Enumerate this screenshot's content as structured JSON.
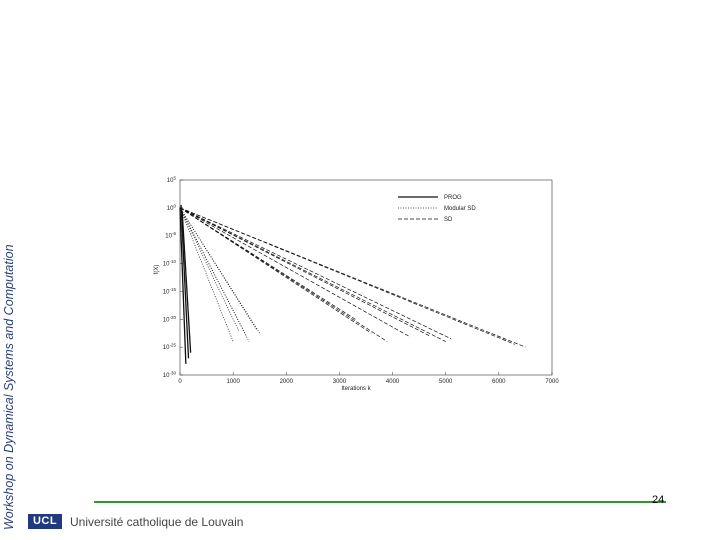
{
  "slide": {
    "side_title": "Workshop on Dynamical Systems and Computation",
    "page_number": "24",
    "logo_text": "UCL",
    "university_name": "Université catholique de Louvain",
    "accent_color": "#2e9a2e",
    "title_color": "#2a3f7a",
    "logo_color": "#1f3a80"
  },
  "chart_data": {
    "type": "line",
    "title": "",
    "xlabel": "Iterations k",
    "ylabel": "f(X)",
    "xlim": [
      0,
      7000
    ],
    "ylim_exponent": [
      -30,
      5
    ],
    "yscale": "log",
    "x_ticks": [
      0,
      1000,
      2000,
      3000,
      4000,
      5000,
      6000,
      7000
    ],
    "y_ticks": [
      "10^5",
      "10^0",
      "10^-5",
      "10^-10",
      "10^-15",
      "10^-20",
      "10^-25",
      "10^-30"
    ],
    "grid": false,
    "legend_position": "top-right",
    "series": [
      {
        "name": "PROG",
        "style": "solid",
        "curves": [
          [
            [
              0,
              0
            ],
            [
              110,
              -28
            ]
          ],
          [
            [
              20,
              0.5
            ],
            [
              160,
              -27
            ]
          ],
          [
            [
              40,
              -0.5
            ],
            [
              200,
              -26
            ]
          ]
        ]
      },
      {
        "name": "Modular SD",
        "style": "dotted",
        "curves": [
          [
            [
              0,
              0
            ],
            [
              1000,
              -24
            ]
          ],
          [
            [
              0,
              0
            ],
            [
              1100,
              -22
            ]
          ],
          [
            [
              0,
              0
            ],
            [
              1250,
              -23
            ]
          ],
          [
            [
              0,
              0
            ],
            [
              1300,
              -24
            ]
          ],
          [
            [
              0,
              0
            ],
            [
              1450,
              -22
            ]
          ],
          [
            [
              0,
              0
            ],
            [
              1500,
              -22.5
            ]
          ]
        ]
      },
      {
        "name": "SD",
        "style": "dashed",
        "curves": [
          [
            [
              0,
              0
            ],
            [
              3300,
              -20
            ]
          ],
          [
            [
              0,
              0
            ],
            [
              3600,
              -22.5
            ]
          ],
          [
            [
              0,
              0
            ],
            [
              3900,
              -24
            ]
          ],
          [
            [
              0,
              0
            ],
            [
              4300,
              -23
            ]
          ],
          [
            [
              0,
              0
            ],
            [
              4700,
              -23
            ]
          ],
          [
            [
              0,
              0
            ],
            [
              5000,
              -24
            ]
          ],
          [
            [
              0,
              0
            ],
            [
              5100,
              -23.5
            ]
          ],
          [
            [
              0,
              0
            ],
            [
              6300,
              -24.5
            ]
          ],
          [
            [
              0,
              0
            ],
            [
              6500,
              -25
            ]
          ]
        ]
      }
    ]
  }
}
